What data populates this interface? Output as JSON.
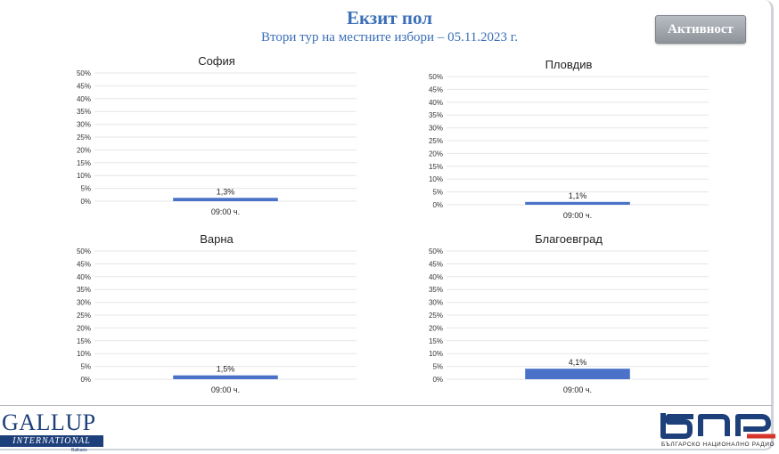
{
  "header": {
    "title": "Екзит пол",
    "subtitle": "Втори тур на местните избори – 05.11.2023 г.",
    "activity_button": "Активност"
  },
  "colors": {
    "bar": "#4a72c8",
    "gridline": "#e6e6e6",
    "title": "#3a6fb8"
  },
  "chart_data": [
    {
      "type": "bar",
      "title": "София",
      "categories": [
        "09:00 ч."
      ],
      "values": [
        1.3
      ],
      "data_labels": [
        "1,3%"
      ],
      "y_ticks": [
        "0%",
        "5%",
        "10%",
        "15%",
        "20%",
        "25%",
        "30%",
        "35%",
        "40%",
        "45%",
        "50%"
      ],
      "ylim": [
        0,
        50
      ],
      "grid": true
    },
    {
      "type": "bar",
      "title": "Пловдив",
      "categories": [
        "09:00 ч."
      ],
      "values": [
        1.1
      ],
      "data_labels": [
        "1,1%"
      ],
      "y_ticks": [
        "0%",
        "5%",
        "10%",
        "15%",
        "20%",
        "25%",
        "30%",
        "35%",
        "40%",
        "45%",
        "50%"
      ],
      "ylim": [
        0,
        50
      ],
      "grid": true
    },
    {
      "type": "bar",
      "title": "Варна",
      "categories": [
        "09:00 ч."
      ],
      "values": [
        1.5
      ],
      "data_labels": [
        "1,5%"
      ],
      "y_ticks": [
        "0%",
        "5%",
        "10%",
        "15%",
        "20%",
        "25%",
        "30%",
        "35%",
        "40%",
        "45%",
        "50%"
      ],
      "ylim": [
        0,
        50
      ],
      "grid": true
    },
    {
      "type": "bar",
      "title": "Благоевград",
      "categories": [
        "09:00 ч."
      ],
      "values": [
        4.1
      ],
      "data_labels": [
        "4,1%"
      ],
      "y_ticks": [
        "0%",
        "5%",
        "10%",
        "15%",
        "20%",
        "25%",
        "30%",
        "35%",
        "40%",
        "45%",
        "50%"
      ],
      "ylim": [
        0,
        50
      ],
      "grid": true
    }
  ],
  "footer": {
    "gallup_name": "GALLUP",
    "gallup_bar": "INTERNATIONAL",
    "gallup_sub": "Balkans",
    "bnr_tagline": "БЪЛГАРСКО НАЦИОНАЛНО РАДИО"
  }
}
